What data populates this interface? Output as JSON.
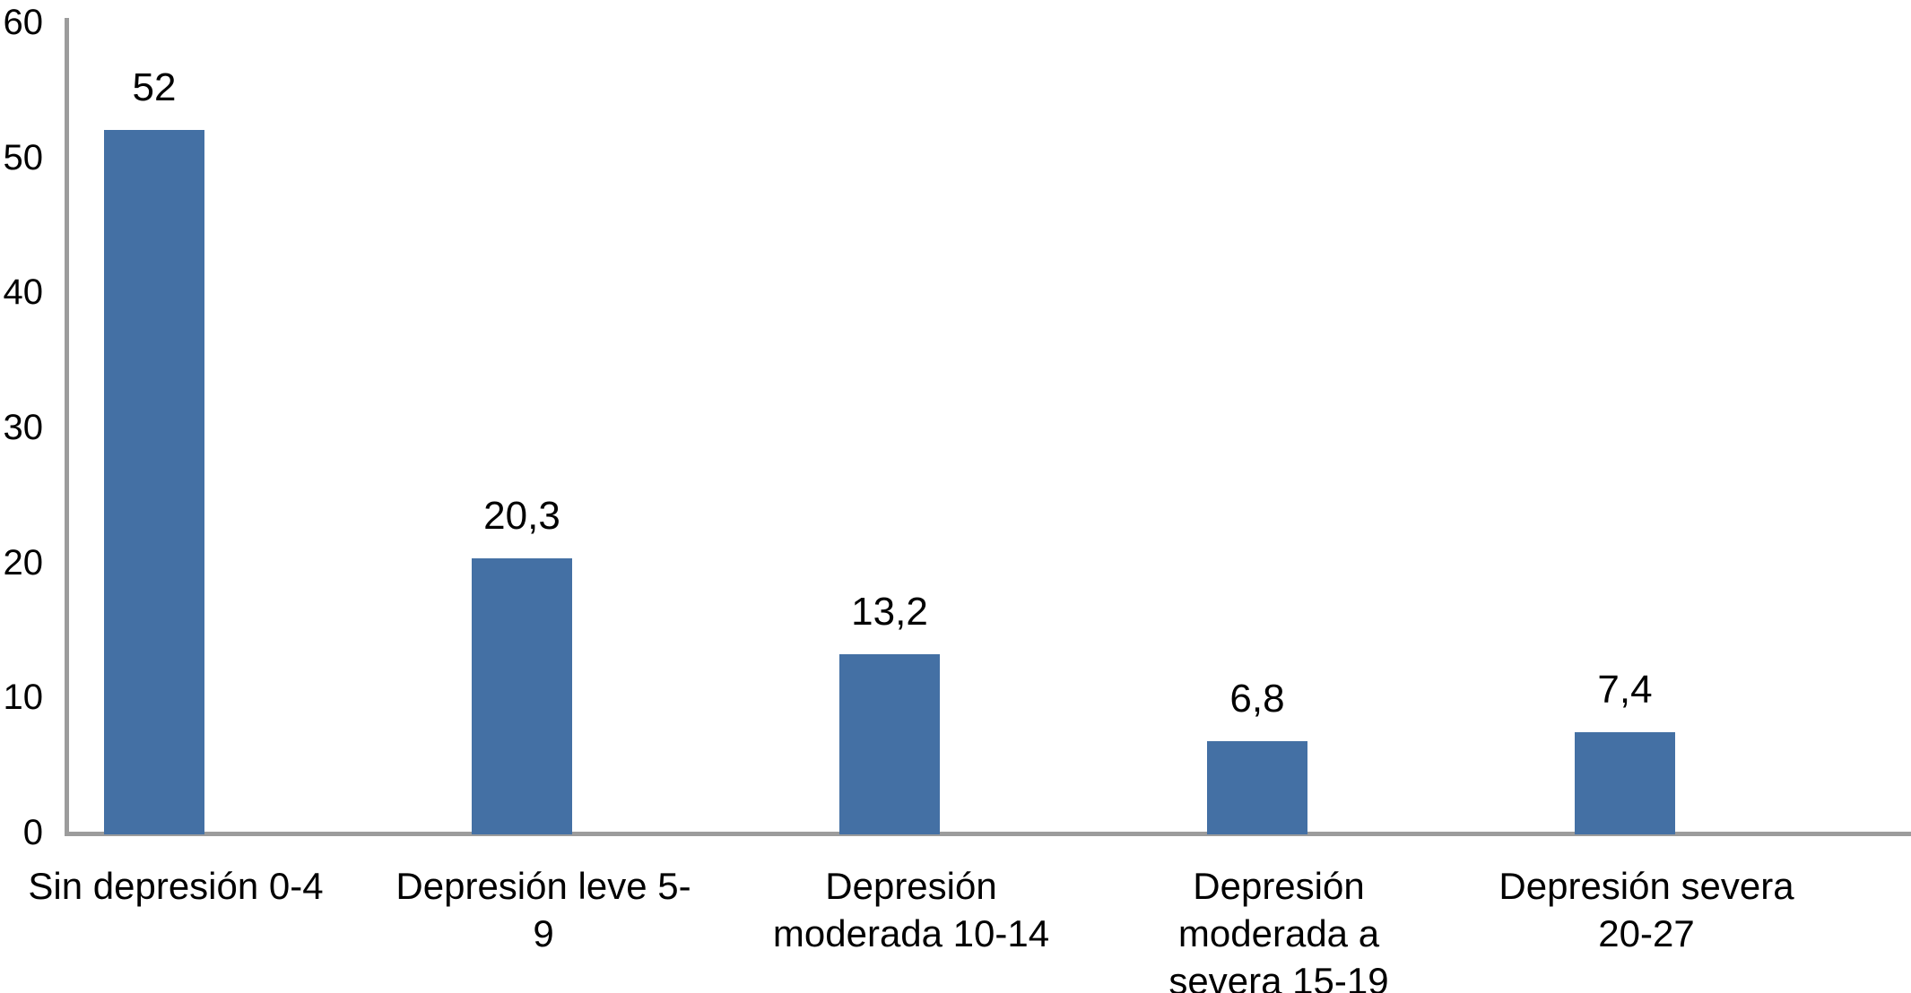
{
  "chart_data": {
    "type": "bar",
    "title": "",
    "xlabel": "",
    "ylabel": "",
    "categories": [
      "Sin depresión 0-4",
      "Depresión leve 5-9",
      "Depresión moderada 10-14",
      "Depresión moderada a severa 15-19",
      "Depresión severa 20-27"
    ],
    "category_label_lines": [
      [
        "Sin depresión 0-4"
      ],
      [
        "Depresión leve 5-",
        "9"
      ],
      [
        "Depresión",
        "moderada 10-14"
      ],
      [
        "Depresión",
        "moderada a",
        "severa 15-19"
      ],
      [
        "Depresión severa",
        "20-27"
      ]
    ],
    "values": [
      52,
      20.3,
      13.2,
      6.8,
      7.4
    ],
    "value_labels": [
      "52",
      "20,3",
      "13,2",
      "6,8",
      "7,4"
    ],
    "ylim": [
      0,
      60
    ],
    "yticks": [
      0,
      10,
      20,
      30,
      40,
      50,
      60
    ],
    "grid": false,
    "legend": null,
    "colors": {
      "bar": "#4470A4",
      "axis": "#9C9C9C",
      "text": "#000000",
      "background": "#FFFFFF"
    }
  }
}
